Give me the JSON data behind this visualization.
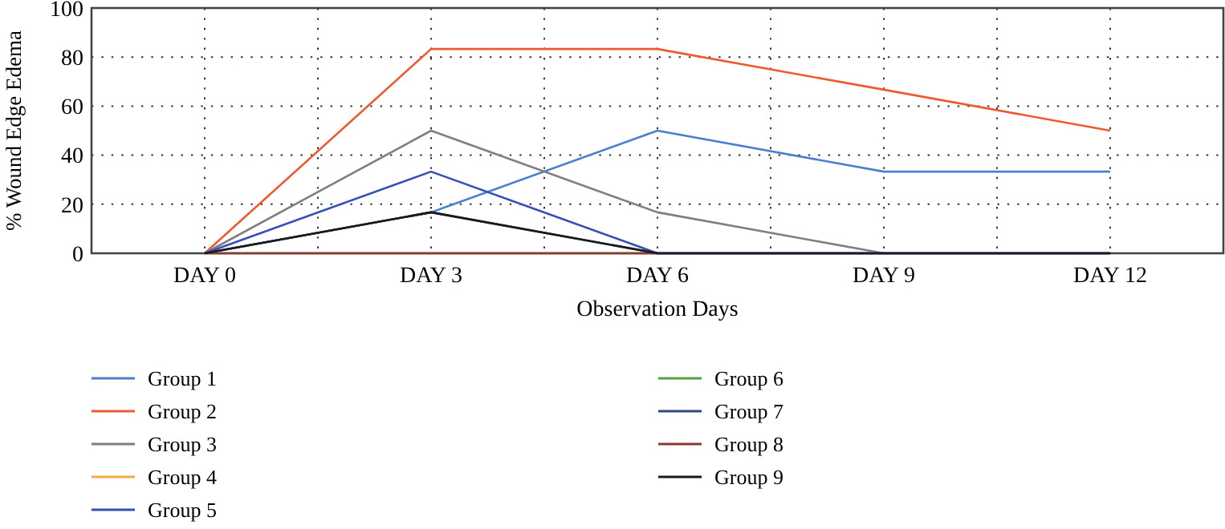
{
  "chart_data": {
    "type": "line",
    "xlabel": "Observation Days",
    "ylabel": "% Wound Edge Edema",
    "categories": [
      "DAY 0",
      "DAY 3",
      "DAY 6",
      "DAY 9",
      "DAY 12"
    ],
    "ylim": [
      0,
      100
    ],
    "yticks": [
      0,
      20,
      40,
      60,
      80,
      100
    ],
    "grid": true,
    "legend": "bottom",
    "marker": "none",
    "line_style": "solid",
    "series": [
      {
        "name": "Group 1",
        "color": "#4a7fd0",
        "values": [
          0,
          16.7,
          50,
          33.3,
          33.3
        ]
      },
      {
        "name": "Group 2",
        "color": "#ee5a30",
        "values": [
          0,
          83.3,
          83.3,
          66.7,
          50
        ]
      },
      {
        "name": "Group 3",
        "color": "#7f7f7f",
        "values": [
          0,
          50,
          16.7,
          0,
          null
        ]
      },
      {
        "name": "Group 4",
        "color": "#f5a742",
        "values": [
          null,
          null,
          null,
          null,
          null
        ]
      },
      {
        "name": "Group 5",
        "color": "#3450b8",
        "values": [
          0,
          33.3,
          0,
          0,
          0
        ]
      },
      {
        "name": "Group 6",
        "color": "#5a9e3a",
        "values": [
          null,
          null,
          null,
          null,
          null
        ]
      },
      {
        "name": "Group 7",
        "color": "#2f4a7a",
        "values": [
          0,
          16.7,
          0,
          0,
          0
        ]
      },
      {
        "name": "Group 8",
        "color": "#8b3a2a",
        "values": [
          0,
          0,
          0,
          null,
          null
        ]
      },
      {
        "name": "Group 9",
        "color": "#1a1a1a",
        "values": [
          0,
          16.7,
          0,
          0,
          0
        ]
      }
    ]
  }
}
